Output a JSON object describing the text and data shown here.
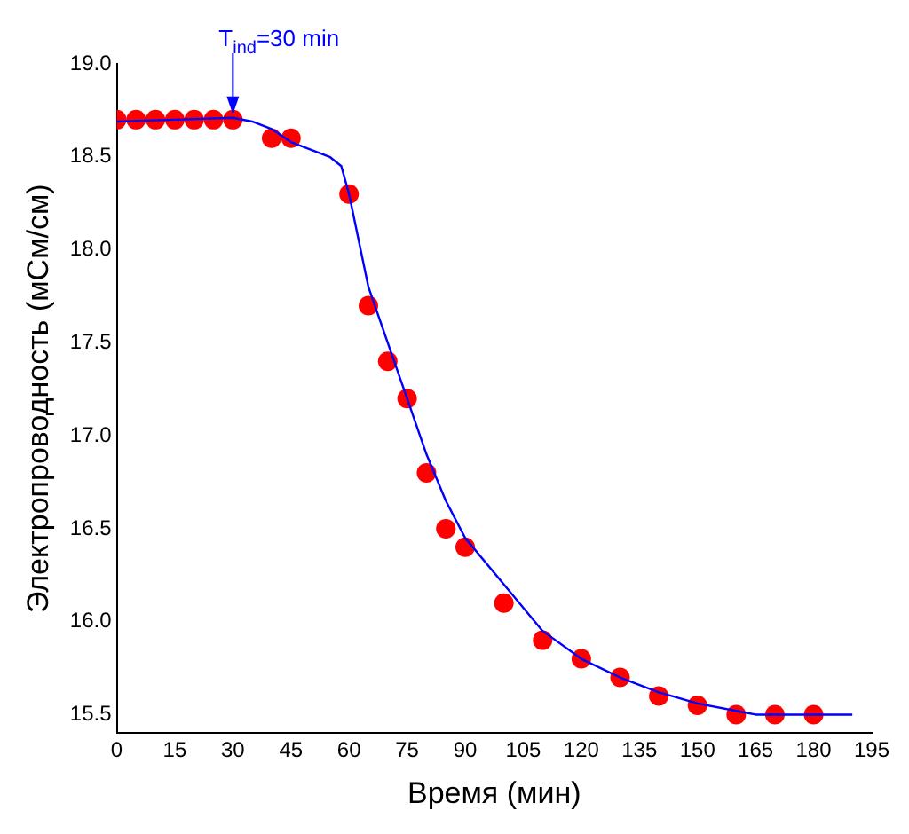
{
  "chart_data": {
    "type": "scatter",
    "xlabel": "Время (мин)",
    "ylabel": "Электропроводность (мСм/см)",
    "xlim": [
      0,
      195
    ],
    "xticks": [
      0,
      15,
      30,
      45,
      60,
      75,
      90,
      105,
      120,
      135,
      150,
      165,
      180,
      195
    ],
    "ylim": [
      15.4,
      19.0
    ],
    "yticks": [
      15.5,
      {
        "value": 16,
        "label": "16.0"
      },
      16.5,
      {
        "value": 17,
        "label": "17.0"
      },
      17.5,
      {
        "value": 18,
        "label": "18.0"
      },
      18.5,
      {
        "value": 19,
        "label": "19.0"
      }
    ],
    "grid": false,
    "legend": false,
    "marker": "circle",
    "annotations": [
      {
        "text": "T$_{ind}$=30 min",
        "x": 30,
        "y": 18.71
      }
    ],
    "series": [
      {
        "type": "scatter",
        "color": "#ff0000",
        "x": [
          0,
          5,
          10,
          15,
          20,
          25,
          30,
          40,
          45,
          60,
          65,
          70,
          75,
          80,
          85,
          90,
          100,
          110,
          120,
          130,
          140,
          150,
          160,
          170,
          180
        ],
        "values": [
          18.7,
          18.7,
          18.7,
          18.7,
          18.7,
          18.7,
          18.7,
          18.6,
          18.6,
          18.3,
          17.7,
          17.4,
          17.2,
          16.8,
          16.5,
          16.4,
          16.1,
          15.9,
          15.8,
          15.7,
          15.6,
          15.55,
          15.5,
          15.5,
          15.5
        ]
      },
      {
        "type": "line",
        "color": "#0000ff",
        "marker": "none",
        "x": [
          0,
          15,
          30,
          35,
          40,
          45,
          55,
          58,
          60,
          65,
          70,
          75,
          80,
          85,
          90,
          100,
          110,
          120,
          130,
          140,
          150,
          160,
          165,
          190
        ],
        "values": [
          18.69,
          18.7,
          18.71,
          18.69,
          18.65,
          18.58,
          18.5,
          18.45,
          18.3,
          17.8,
          17.5,
          17.2,
          16.9,
          16.65,
          16.45,
          16.2,
          15.95,
          15.8,
          15.7,
          15.62,
          15.56,
          15.52,
          15.5,
          15.5
        ]
      }
    ]
  }
}
